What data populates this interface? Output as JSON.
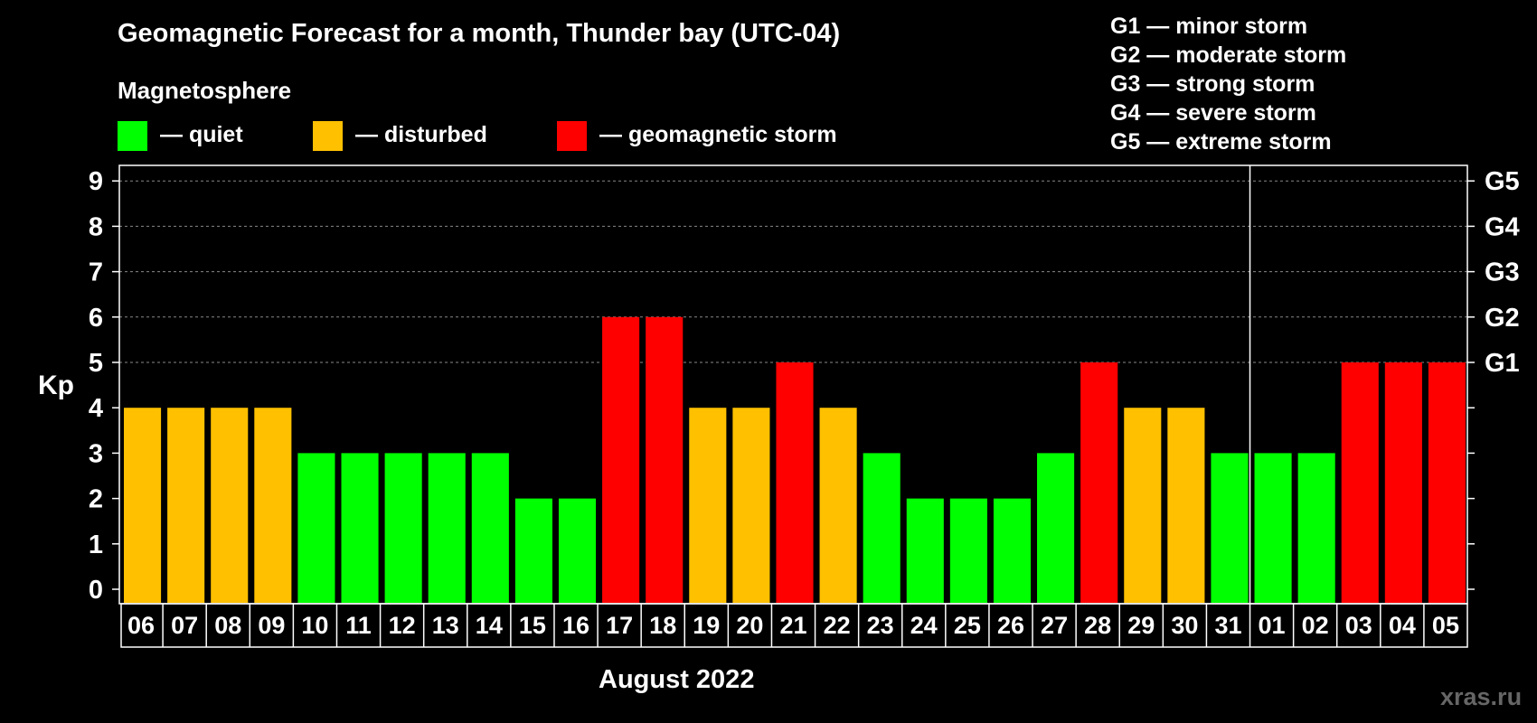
{
  "title": "Geomagnetic Forecast for a month, Thunder bay (UTC-04)",
  "legend": {
    "heading": "Magnetosphere",
    "items": [
      {
        "label": "— quiet",
        "color": "#00ff00"
      },
      {
        "label": "— disturbed",
        "color": "#ffc000"
      },
      {
        "label": "— geomagnetic storm",
        "color": "#ff0000"
      }
    ]
  },
  "storm_scale": [
    "G1 — minor storm",
    "G2 — moderate storm",
    "G3 — strong storm",
    "G4 — severe storm",
    "G5 — extreme storm"
  ],
  "watermark": "xras.ru",
  "chart_data": {
    "type": "bar",
    "title": "Geomagnetic Forecast for a month, Thunder bay (UTC-04)",
    "xlabel": "August 2022",
    "ylabel": "Kp",
    "ylim": [
      0,
      9
    ],
    "yticks": [
      "0",
      "1",
      "2",
      "3",
      "4",
      "5",
      "6",
      "7",
      "8",
      "9"
    ],
    "right_ticks": [
      {
        "value": 5,
        "label": "G1"
      },
      {
        "value": 6,
        "label": "G2"
      },
      {
        "value": 7,
        "label": "G3"
      },
      {
        "value": 8,
        "label": "G4"
      },
      {
        "value": 9,
        "label": "G5"
      }
    ],
    "grid": "dashed at Kp 5-9",
    "month_divider_after": "31",
    "categories": [
      "06",
      "07",
      "08",
      "09",
      "10",
      "11",
      "12",
      "13",
      "14",
      "15",
      "16",
      "17",
      "18",
      "19",
      "20",
      "21",
      "22",
      "23",
      "24",
      "25",
      "26",
      "27",
      "28",
      "29",
      "30",
      "31",
      "01",
      "02",
      "03",
      "04",
      "05"
    ],
    "values": [
      4,
      4,
      4,
      4,
      3,
      3,
      3,
      3,
      3,
      2,
      2,
      6,
      6,
      4,
      4,
      5,
      4,
      3,
      2,
      2,
      2,
      3,
      5,
      4,
      4,
      3,
      3,
      3,
      5,
      5,
      5
    ],
    "color_rule": {
      "quiet": "Kp <= 3",
      "disturbed": "Kp = 4",
      "geomagnetic storm": "Kp >= 5"
    }
  }
}
